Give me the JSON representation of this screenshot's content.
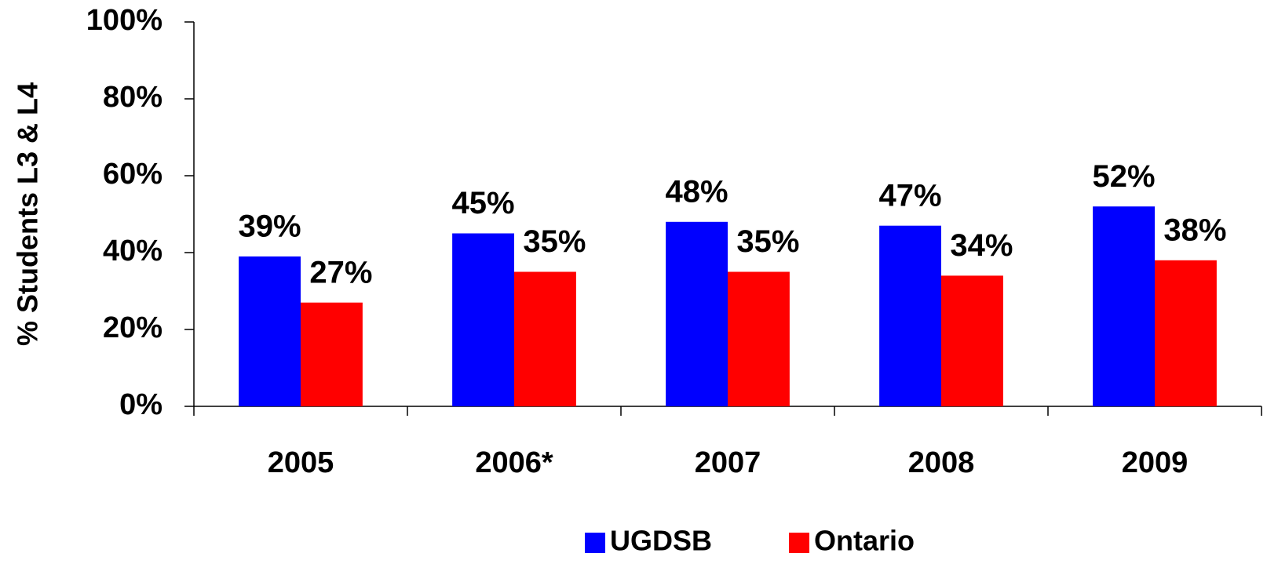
{
  "chart_data": {
    "type": "bar",
    "y_label": "% Students L3 & L4",
    "categories": [
      "2005",
      "2006*",
      "2007",
      "2008",
      "2009"
    ],
    "series": [
      {
        "name": "UGDSB",
        "color": "#0000ff",
        "values": [
          39,
          45,
          48,
          47,
          52
        ],
        "value_labels": [
          "39%",
          "45%",
          "48%",
          "47%",
          "52%"
        ]
      },
      {
        "name": "Ontario",
        "color": "#ff0000",
        "values": [
          27,
          35,
          35,
          34,
          38
        ],
        "value_labels": [
          "27%",
          "35%",
          "35%",
          "34%",
          "38%"
        ]
      }
    ],
    "ylim": [
      0,
      100
    ],
    "yticks": [
      {
        "value": 0,
        "label": "0%"
      },
      {
        "value": 20,
        "label": "20%"
      },
      {
        "value": 40,
        "label": "40%"
      },
      {
        "value": 60,
        "label": "60%"
      },
      {
        "value": 80,
        "label": "80%"
      },
      {
        "value": 100,
        "label": "100%"
      }
    ],
    "grid": false,
    "legend": "bottom"
  }
}
